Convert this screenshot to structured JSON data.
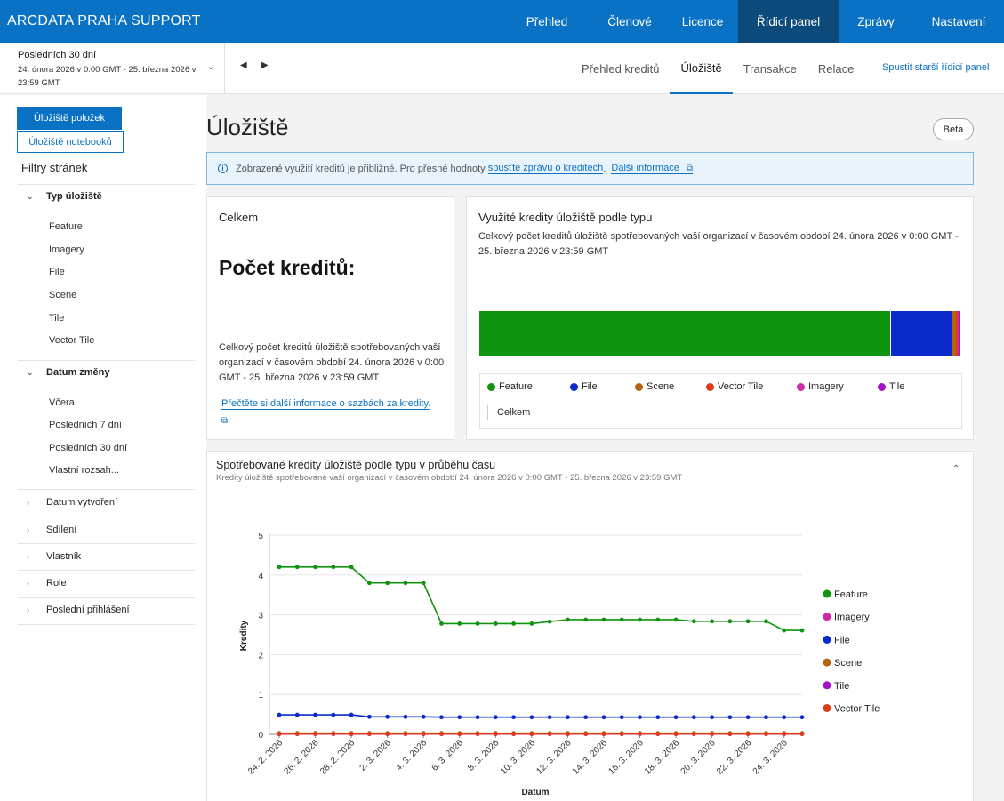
{
  "brand": "ARCDATA PRAHA SUPPORT",
  "nav": [
    {
      "label": "Přehled",
      "w": 0
    },
    {
      "label": "Členové"
    },
    {
      "label": "Licence"
    },
    {
      "label": "Řídicí panel"
    },
    {
      "label": "Zprávy"
    },
    {
      "label": "Nastavení"
    }
  ],
  "daterange": {
    "title": "Posledních 30 dní",
    "sub": "24. února 2026 v 0:00 GMT - 25. března 2026 v 23:59 GMT"
  },
  "subtabs": [
    "Přehled kreditů",
    "Úložiště",
    "Transakce",
    "Relace"
  ],
  "legacy_link": "Spustit starší řídicí panel",
  "sidebar": {
    "btn_items": "Úložiště položek",
    "btn_notebooks": "Úložiště notebooků",
    "filters_title": "Filtry stránek",
    "type_group": "Typ úložiště",
    "type_options": [
      "Feature",
      "Imagery",
      "File",
      "Scene",
      "Tile",
      "Vector Tile"
    ],
    "date_group": "Datum změny",
    "date_options": [
      "Včera",
      "Posledních 7 dní",
      "Posledních 30 dní",
      "Vlastní rozsah..."
    ],
    "collapsed_groups": [
      "Datum vytvoření",
      "Sdílení",
      "Vlastník",
      "Role",
      "Poslední přihlášení"
    ]
  },
  "page_title": "Úložiště",
  "beta": "Beta",
  "notice": {
    "text": "Zobrazené využití kreditů je přibližné. Pro přesné hodnoty",
    "link1": "spusťte zprávu o kreditech",
    "sep": ".",
    "link2": "Další informace"
  },
  "total_card": {
    "title": "Celkem",
    "big": "Počet kreditů:",
    "desc": "Celkový počet kreditů úložiště spotřebovaných vaší organizací v časovém období 24. února 2026 v 0:00 GMT - 25. března 2026 v 23:59 GMT",
    "link": "Přečtěte si další informace o sazbách za kredity."
  },
  "type_card": {
    "title": "Využité kredity úložiště podle typu",
    "desc": "Celkový počet kreditů úložiště spotřebovaných vaší organizací v časovém období 24. února 2026 v 0:00 GMT - 25. března 2026 v 23:59 GMT",
    "legend": [
      "Feature",
      "File",
      "Scene",
      "Vector Tile",
      "Imagery",
      "Tile"
    ],
    "legend_total": "Celkem"
  },
  "colors": {
    "Feature": "#10930f",
    "File": "#0b2acc",
    "Scene": "#b3650e",
    "Vector Tile": "#df3a1c",
    "Imagery": "#d12aa6",
    "Tile": "#a214c5"
  },
  "line_card": {
    "title": "Spotřebované kredity úložiště podle typu v průběhu času",
    "sub": "Kredity úložiště spotřebované vaší organizací v časovém období 24. února 2026 v 0:00 GMT - 25. března 2026 v 23:59 GMT"
  },
  "chart_data": [
    {
      "type": "bar",
      "orientation": "horizontal-stacked",
      "title": "Využité kredity úložiště podle typu",
      "categories": [
        "Feature",
        "File",
        "Scene",
        "Vector Tile",
        "Imagery",
        "Tile"
      ],
      "values": [
        85.6,
        12.6,
        0.9,
        0.3,
        0.3,
        0.3
      ],
      "unit_hint": "share of total credits (%)"
    },
    {
      "type": "line",
      "title": "Spotřebované kredity úložiště podle typu v průběhu času",
      "xlabel": "Datum",
      "ylabel": "Kredity",
      "ylim": [
        0,
        5
      ],
      "yticks": [
        0,
        1,
        2,
        3,
        4,
        5
      ],
      "grid": true,
      "legend": "right",
      "x": [
        "24. 2. 2026",
        "25. 2. 2026",
        "26. 2. 2026",
        "27. 2. 2026",
        "28. 2. 2026",
        "1. 3. 2026",
        "2. 3. 2026",
        "3. 3. 2026",
        "4. 3. 2026",
        "5. 3. 2026",
        "6. 3. 2026",
        "7. 3. 2026",
        "8. 3. 2026",
        "9. 3. 2026",
        "10. 3. 2026",
        "11. 3. 2026",
        "12. 3. 2026",
        "13. 3. 2026",
        "14. 3. 2026",
        "15. 3. 2026",
        "16. 3. 2026",
        "17. 3. 2026",
        "18. 3. 2026",
        "19. 3. 2026",
        "20. 3. 2026",
        "21. 3. 2026",
        "22. 3. 2026",
        "23. 3. 2026",
        "24. 3. 2026",
        "25. 3. 2026"
      ],
      "x_tick_labels": [
        "24. 2. 2026",
        "26. 2. 2026",
        "28. 2. 2026",
        "2. 3. 2026",
        "4. 3. 2026",
        "6. 3. 2026",
        "8. 3. 2026",
        "10. 3. 2026",
        "12. 3. 2026",
        "14. 3. 2026",
        "16. 3. 2026",
        "18. 3. 2026",
        "20. 3. 2026",
        "22. 3. 2026",
        "24. 3. 2026"
      ],
      "series": [
        {
          "name": "Feature",
          "values": [
            4.2,
            4.2,
            4.2,
            4.2,
            4.2,
            3.8,
            3.8,
            3.8,
            3.8,
            2.78,
            2.78,
            2.78,
            2.78,
            2.78,
            2.78,
            2.83,
            2.88,
            2.88,
            2.88,
            2.88,
            2.88,
            2.88,
            2.88,
            2.84,
            2.84,
            2.84,
            2.84,
            2.84,
            2.61,
            2.61
          ]
        },
        {
          "name": "Imagery",
          "values": [
            0.01,
            0.01,
            0.01,
            0.01,
            0.01,
            0.01,
            0.01,
            0.01,
            0.01,
            0.01,
            0.01,
            0.01,
            0.01,
            0.01,
            0.01,
            0.01,
            0.01,
            0.01,
            0.01,
            0.01,
            0.01,
            0.01,
            0.01,
            0.01,
            0.01,
            0.01,
            0.01,
            0.01,
            0.01,
            0.01
          ]
        },
        {
          "name": "File",
          "values": [
            0.49,
            0.49,
            0.49,
            0.49,
            0.49,
            0.44,
            0.44,
            0.44,
            0.44,
            0.43,
            0.43,
            0.43,
            0.43,
            0.43,
            0.43,
            0.43,
            0.43,
            0.43,
            0.43,
            0.43,
            0.43,
            0.43,
            0.43,
            0.43,
            0.43,
            0.43,
            0.43,
            0.43,
            0.43,
            0.43
          ]
        },
        {
          "name": "Scene",
          "values": [
            0.03,
            0.03,
            0.03,
            0.03,
            0.03,
            0.03,
            0.03,
            0.03,
            0.03,
            0.03,
            0.03,
            0.03,
            0.03,
            0.03,
            0.03,
            0.03,
            0.03,
            0.03,
            0.03,
            0.03,
            0.03,
            0.03,
            0.03,
            0.03,
            0.03,
            0.03,
            0.03,
            0.03,
            0.03,
            0.03
          ]
        },
        {
          "name": "Tile",
          "values": [
            0.01,
            0.01,
            0.01,
            0.01,
            0.01,
            0.01,
            0.01,
            0.01,
            0.01,
            0.01,
            0.01,
            0.01,
            0.01,
            0.01,
            0.01,
            0.01,
            0.01,
            0.01,
            0.01,
            0.01,
            0.01,
            0.01,
            0.01,
            0.01,
            0.01,
            0.01,
            0.01,
            0.01,
            0.01,
            0.01
          ]
        },
        {
          "name": "Vector Tile",
          "values": [
            0.01,
            0.01,
            0.01,
            0.01,
            0.01,
            0.01,
            0.01,
            0.01,
            0.01,
            0.01,
            0.01,
            0.01,
            0.01,
            0.01,
            0.01,
            0.01,
            0.01,
            0.01,
            0.01,
            0.01,
            0.01,
            0.01,
            0.01,
            0.01,
            0.01,
            0.01,
            0.01,
            0.01,
            0.01,
            0.01
          ]
        }
      ]
    }
  ]
}
